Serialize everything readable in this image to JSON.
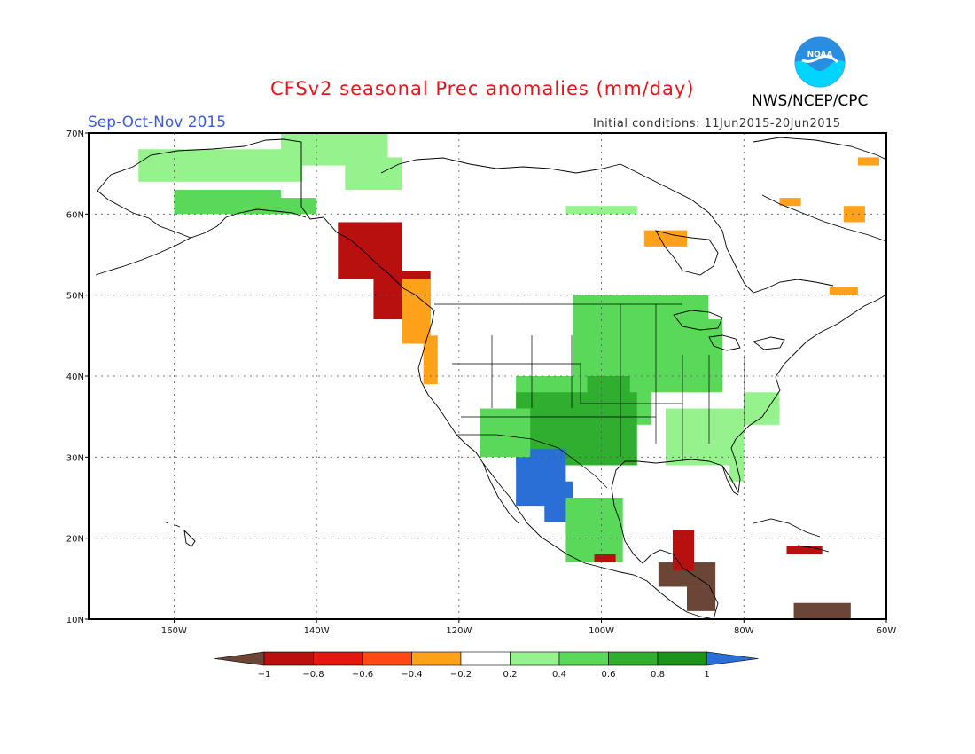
{
  "title": "CFSv2 seasonal Prec anomalies (mm/day)",
  "season": "Sep-Oct-Nov 2015",
  "initial_conditions": "Initial conditions: 11Jun2015-20Jun2015",
  "agency": "NWS/NCEP/CPC",
  "logo_text": "NOAA",
  "logo_icon": "noaa-logo",
  "map": {
    "lon_range": [
      -172,
      -60
    ],
    "lat_range": [
      10,
      70
    ],
    "lon_ticks": [
      {
        "value": -160,
        "label": "160W"
      },
      {
        "value": -140,
        "label": "140W"
      },
      {
        "value": -120,
        "label": "120W"
      },
      {
        "value": -100,
        "label": "100W"
      },
      {
        "value": -80,
        "label": "80W"
      },
      {
        "value": -60,
        "label": "60W"
      }
    ],
    "lat_ticks": [
      {
        "value": 10,
        "label": "10N"
      },
      {
        "value": 20,
        "label": "20N"
      },
      {
        "value": 30,
        "label": "30N"
      },
      {
        "value": 40,
        "label": "40N"
      },
      {
        "value": 50,
        "label": "50N"
      },
      {
        "value": 60,
        "label": "60N"
      },
      {
        "value": 70,
        "label": "70N"
      }
    ],
    "grid": true,
    "regions": [
      {
        "name": "alaska-north-wet",
        "level": 0.3,
        "cells": [
          [
            -165,
            64,
            -142,
            68
          ],
          [
            -145,
            66,
            -130,
            70
          ],
          [
            -136,
            63,
            -128,
            67
          ]
        ]
      },
      {
        "name": "alaska-south-wet",
        "level": 0.5,
        "cells": [
          [
            -160,
            60,
            -145,
            63
          ],
          [
            -150,
            60,
            -140,
            62
          ]
        ]
      },
      {
        "name": "pacific-nw-coast-dry",
        "level": -0.8,
        "cells": [
          [
            -137,
            52,
            -128,
            59
          ],
          [
            -132,
            47,
            -124,
            53
          ]
        ]
      },
      {
        "name": "pacific-nw-margin-dry",
        "level": -0.3,
        "cells": [
          [
            -128,
            44,
            -124,
            52
          ],
          [
            -125,
            39,
            -123,
            45
          ]
        ]
      },
      {
        "name": "canada-central-wet",
        "level": 0.3,
        "cells": [
          [
            -105,
            60,
            -95,
            61
          ]
        ]
      },
      {
        "name": "hudson-dry",
        "level": -0.3,
        "cells": [
          [
            -94,
            56,
            -88,
            58
          ]
        ]
      },
      {
        "name": "labrador-dry",
        "level": -0.3,
        "cells": [
          [
            -75,
            61,
            -72,
            62
          ],
          [
            -66,
            59,
            -63,
            61
          ],
          [
            -64,
            66,
            -61,
            67
          ],
          [
            -68,
            50,
            -64,
            51
          ]
        ]
      },
      {
        "name": "us-central-wet",
        "level": 0.5,
        "cells": [
          [
            -104,
            38,
            -85,
            50
          ],
          [
            -112,
            34,
            -93,
            40
          ],
          [
            -88,
            38,
            -83,
            47
          ]
        ]
      },
      {
        "name": "us-south-wet",
        "level": 0.7,
        "cells": [
          [
            -112,
            29,
            -95,
            38
          ],
          [
            -102,
            35,
            -96,
            40
          ]
        ]
      },
      {
        "name": "us-southeast-wet",
        "level": 0.3,
        "cells": [
          [
            -91,
            29,
            -80,
            36
          ],
          [
            -80,
            34,
            -75,
            38
          ],
          [
            -82,
            27,
            -80,
            31
          ]
        ]
      },
      {
        "name": "mexico-northwest-very-wet",
        "level": 1.1,
        "cells": [
          [
            -112,
            24,
            -105,
            31
          ],
          [
            -108,
            22,
            -104,
            27
          ]
        ]
      },
      {
        "name": "mexico-central-wet",
        "level": 0.5,
        "cells": [
          [
            -105,
            17,
            -97,
            25
          ],
          [
            -117,
            30,
            -110,
            36
          ]
        ]
      },
      {
        "name": "central-america-very-dry",
        "level": -1.1,
        "cells": [
          [
            -92,
            14,
            -84,
            17
          ],
          [
            -88,
            11,
            -84,
            14
          ],
          [
            -73,
            10,
            -65,
            12
          ]
        ]
      },
      {
        "name": "yucatan-dry",
        "level": -0.8,
        "cells": [
          [
            -90,
            16,
            -87,
            21
          ],
          [
            -101,
            17,
            -98,
            18
          ]
        ]
      },
      {
        "name": "caribbean-dry",
        "level": -0.8,
        "cells": [
          [
            -74,
            18,
            -69,
            19
          ]
        ]
      }
    ]
  },
  "colorbar": {
    "labels": [
      "-1",
      "-0.8",
      "-0.6",
      "-0.4",
      "-0.2",
      "0.2",
      "0.4",
      "0.6",
      "0.8",
      "1"
    ],
    "colors": [
      "#6b4536",
      "#b80f0f",
      "#e0180f",
      "#ff4b12",
      "#ffa11a",
      "#ffffff",
      "#95f28d",
      "#5ad85a",
      "#2fae2f",
      "#1a951a",
      "#2a6fd6"
    ]
  }
}
